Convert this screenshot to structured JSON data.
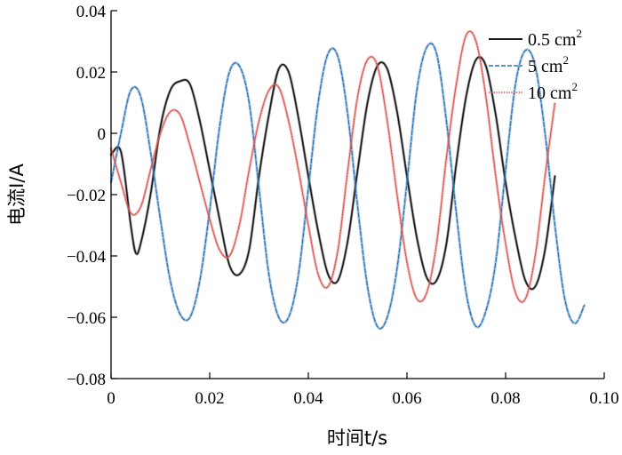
{
  "chart_data": {
    "type": "line",
    "title": "",
    "xlabel": "时间t/s",
    "ylabel": "电流I/A",
    "xlim": [
      0,
      0.1
    ],
    "ylim": [
      -0.08,
      0.04
    ],
    "x_ticks": [
      0,
      0.02,
      0.04,
      0.06,
      0.08,
      0.1
    ],
    "x_tick_labels": [
      "0",
      "0.02",
      "0.04",
      "0.06",
      "0.08",
      "0.10"
    ],
    "y_ticks": [
      0.04,
      0.02,
      0,
      -0.02,
      -0.04,
      -0.06,
      -0.08
    ],
    "y_tick_labels": [
      "0.04",
      "0.02",
      "0",
      "−0.02",
      "−0.04",
      "−0.06",
      "−0.08"
    ],
    "grid": false,
    "legend_position": "top-right",
    "series": [
      {
        "name": "0.5 cm",
        "name_superscript": "2",
        "color": "#1a1a1a",
        "style": "solid",
        "x": [
          0,
          0.002,
          0.004,
          0.005,
          0.006,
          0.008,
          0.01,
          0.012,
          0.014,
          0.016,
          0.018,
          0.02,
          0.022,
          0.024,
          0.026,
          0.028,
          0.03,
          0.032,
          0.034,
          0.036,
          0.038,
          0.04,
          0.042,
          0.044,
          0.046,
          0.048,
          0.05,
          0.052,
          0.054,
          0.056,
          0.058,
          0.06,
          0.062,
          0.064,
          0.066,
          0.068,
          0.07,
          0.072,
          0.074,
          0.076,
          0.078,
          0.08,
          0.082,
          0.084,
          0.086,
          0.088,
          0.09
        ],
        "y": [
          -0.007,
          -0.006,
          -0.03,
          -0.039,
          -0.036,
          -0.02,
          0.002,
          0.014,
          0.017,
          0.016,
          0.004,
          -0.012,
          -0.028,
          -0.043,
          -0.046,
          -0.038,
          -0.014,
          0.006,
          0.021,
          0.02,
          0.005,
          -0.014,
          -0.032,
          -0.046,
          -0.048,
          -0.035,
          -0.012,
          0.01,
          0.022,
          0.021,
          0.007,
          -0.014,
          -0.034,
          -0.047,
          -0.048,
          -0.036,
          -0.01,
          0.012,
          0.024,
          0.022,
          0.006,
          -0.016,
          -0.034,
          -0.048,
          -0.05,
          -0.038,
          -0.014
        ]
      },
      {
        "name": "5 cm",
        "name_superscript": "2",
        "color": "#2e75b6",
        "style": "dashed",
        "x": [
          0,
          0.002,
          0.004,
          0.006,
          0.008,
          0.01,
          0.012,
          0.014,
          0.016,
          0.018,
          0.02,
          0.022,
          0.024,
          0.026,
          0.028,
          0.03,
          0.032,
          0.034,
          0.036,
          0.038,
          0.04,
          0.042,
          0.044,
          0.046,
          0.048,
          0.05,
          0.052,
          0.054,
          0.056,
          0.058,
          0.06,
          0.062,
          0.064,
          0.066,
          0.068,
          0.07,
          0.072,
          0.074,
          0.076,
          0.078,
          0.08,
          0.082,
          0.084,
          0.086,
          0.088,
          0.09,
          0.092,
          0.094,
          0.096
        ],
        "y": [
          -0.016,
          0.0,
          0.014,
          0.012,
          -0.006,
          -0.028,
          -0.048,
          -0.059,
          -0.06,
          -0.048,
          -0.025,
          0.002,
          0.02,
          0.022,
          0.01,
          -0.018,
          -0.046,
          -0.06,
          -0.06,
          -0.046,
          -0.018,
          0.01,
          0.026,
          0.025,
          0.006,
          -0.024,
          -0.05,
          -0.063,
          -0.06,
          -0.044,
          -0.016,
          0.014,
          0.028,
          0.026,
          0.004,
          -0.026,
          -0.052,
          -0.063,
          -0.058,
          -0.042,
          -0.012,
          0.016,
          0.027,
          0.022,
          0.0,
          -0.03,
          -0.054,
          -0.062,
          -0.056
        ]
      },
      {
        "name": "10 cm",
        "name_superscript": "2",
        "color": "#d9534f",
        "style": "dotted",
        "x": [
          0,
          0.002,
          0.004,
          0.006,
          0.008,
          0.01,
          0.012,
          0.014,
          0.016,
          0.018,
          0.02,
          0.022,
          0.024,
          0.026,
          0.028,
          0.03,
          0.032,
          0.034,
          0.036,
          0.038,
          0.04,
          0.042,
          0.044,
          0.046,
          0.048,
          0.05,
          0.052,
          0.054,
          0.056,
          0.058,
          0.06,
          0.062,
          0.064,
          0.066,
          0.068,
          0.07,
          0.072,
          0.074,
          0.076,
          0.078,
          0.08,
          0.082,
          0.084,
          0.086,
          0.088,
          0.09
        ],
        "y": [
          -0.005,
          -0.016,
          -0.026,
          -0.024,
          -0.012,
          0.0,
          0.007,
          0.006,
          -0.004,
          -0.016,
          -0.028,
          -0.038,
          -0.04,
          -0.03,
          -0.012,
          0.004,
          0.014,
          0.015,
          0.004,
          -0.012,
          -0.03,
          -0.046,
          -0.05,
          -0.038,
          -0.012,
          0.012,
          0.024,
          0.022,
          0.004,
          -0.02,
          -0.042,
          -0.054,
          -0.052,
          -0.036,
          -0.008,
          0.016,
          0.032,
          0.03,
          0.012,
          -0.014,
          -0.036,
          -0.052,
          -0.054,
          -0.04,
          -0.014,
          0.01
        ]
      }
    ]
  }
}
